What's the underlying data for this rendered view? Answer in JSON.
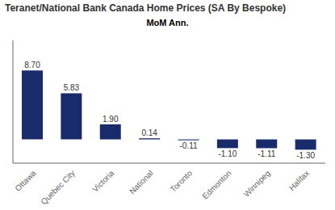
{
  "chart_data": {
    "type": "bar",
    "title": "Teranet/National Bank Canada Home Prices (SA By Bespoke)",
    "subtitle": "MoM Ann.",
    "categories": [
      "Ottawa",
      "Quebec City",
      "Victoria",
      "National",
      "Toronto",
      "Edmonton",
      "Winnipeg",
      "Halifax"
    ],
    "values": [
      8.7,
      5.83,
      1.9,
      0.14,
      -0.11,
      -1.1,
      -1.11,
      -1.3
    ],
    "value_labels": [
      "8.70",
      "5.83",
      "1.90",
      "0.14",
      "-0.11",
      "-1.10",
      "-1.11",
      "-1.30"
    ],
    "color": "#1a2b6b",
    "ylim": [
      -3.0,
      12.5
    ],
    "data_labels": true,
    "tick_labels": "x"
  }
}
